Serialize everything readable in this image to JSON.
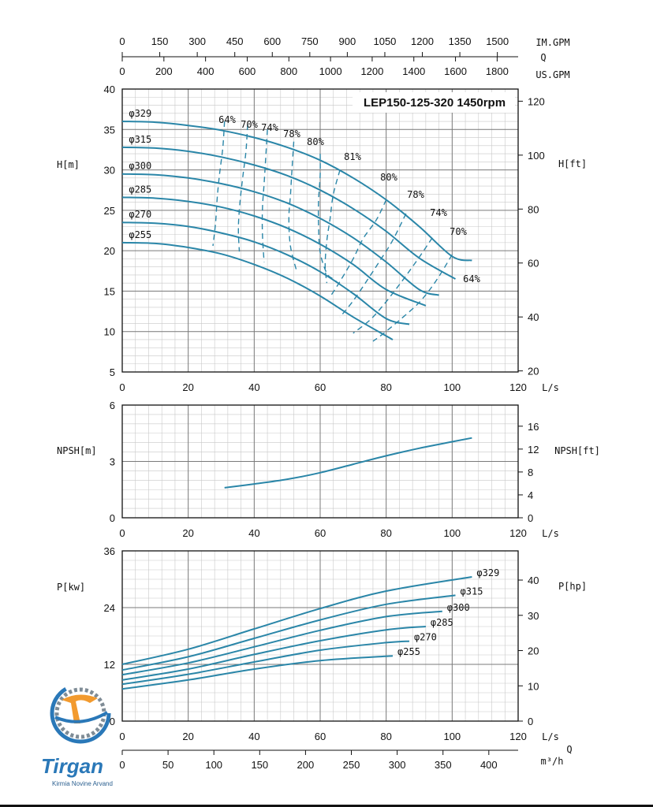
{
  "chart_data": [
    {
      "type": "line",
      "title": "LEP150-125-320 1450rpm",
      "xlabel": "L/s",
      "ylabel": "H[m]",
      "ylabel_right": "H[ft]",
      "xlim": [
        0,
        120
      ],
      "ylim": [
        5,
        40
      ],
      "xticks": [
        "0",
        "20",
        "40",
        "60",
        "80",
        "100",
        "120"
      ],
      "yticks": [
        "5",
        "10",
        "15",
        "20",
        "25",
        "30",
        "35",
        "40"
      ],
      "yticks_right": [
        "20",
        "40",
        "60",
        "80",
        "100",
        "120"
      ],
      "grid": true,
      "top_axes": [
        {
          "unit": "IM.GPM",
          "ticks": [
            "0",
            "150",
            "300",
            "450",
            "600",
            "750",
            "900",
            "1050",
            "1200",
            "1350",
            "1500"
          ]
        },
        {
          "unit": "Q",
          "ticks": []
        },
        {
          "unit": "US.GPM",
          "ticks": [
            "0",
            "200",
            "400",
            "600",
            "800",
            "1000",
            "1200",
            "1400",
            "1600",
            "1800"
          ]
        }
      ],
      "series": [
        {
          "name": "φ329",
          "x": [
            0,
            10,
            20,
            30,
            40,
            50,
            60,
            70,
            80,
            90,
            100,
            106
          ],
          "y": [
            36.0,
            35.9,
            35.5,
            34.9,
            34.0,
            32.8,
            31.2,
            29.0,
            26.3,
            23.0,
            19.3,
            18.8
          ]
        },
        {
          "name": "φ315",
          "x": [
            0,
            10,
            20,
            30,
            40,
            50,
            60,
            70,
            80,
            90,
            101
          ],
          "y": [
            32.8,
            32.7,
            32.3,
            31.6,
            30.6,
            29.3,
            27.5,
            25.2,
            22.4,
            19.1,
            16.5
          ]
        },
        {
          "name": "φ300",
          "x": [
            0,
            10,
            20,
            30,
            40,
            50,
            60,
            70,
            80,
            90,
            96
          ],
          "y": [
            29.5,
            29.4,
            29.0,
            28.3,
            27.3,
            25.9,
            24.0,
            21.6,
            18.6,
            15.2,
            14.5
          ]
        },
        {
          "name": "φ285",
          "x": [
            0,
            10,
            20,
            30,
            40,
            50,
            60,
            70,
            80,
            92
          ],
          "y": [
            26.6,
            26.5,
            26.1,
            25.4,
            24.3,
            22.8,
            20.8,
            18.3,
            15.2,
            13.2
          ]
        },
        {
          "name": "φ270",
          "x": [
            0,
            10,
            20,
            30,
            40,
            50,
            60,
            70,
            80,
            87
          ],
          "y": [
            23.5,
            23.4,
            23.0,
            22.2,
            21.1,
            19.5,
            17.4,
            14.7,
            11.6,
            10.9
          ]
        },
        {
          "name": "φ255",
          "x": [
            0,
            10,
            20,
            30,
            40,
            50,
            60,
            70,
            82
          ],
          "y": [
            21.0,
            20.9,
            20.4,
            19.6,
            18.3,
            16.6,
            14.4,
            11.8,
            9.0
          ]
        }
      ],
      "efficiency_labels": [
        "64%",
        "70%",
        "74%",
        "78%",
        "80%",
        "81%",
        "80%",
        "78%",
        "74%",
        "70%",
        "64%"
      ],
      "efficiency_left": [
        {
          "name": "64%",
          "x": [
            31,
            30.5,
            29.5,
            28.8,
            28.3,
            27.5
          ],
          "y": [
            36,
            32.8,
            29.5,
            26.6,
            23.5,
            20.6
          ]
        },
        {
          "name": "70%",
          "x": [
            38,
            37.5,
            36.5,
            35.7,
            35.2,
            35.5
          ],
          "y": [
            35.6,
            32.3,
            29.0,
            26.0,
            22.8,
            19.9
          ]
        },
        {
          "name": "74%",
          "x": [
            44,
            43.5,
            43,
            42.5,
            42.5,
            43
          ],
          "y": [
            35.0,
            31.6,
            28.3,
            25.2,
            22.0,
            18.6
          ]
        },
        {
          "name": "78%",
          "x": [
            52,
            51.5,
            51,
            50.5,
            51,
            53
          ],
          "y": [
            33.5,
            30.3,
            27.0,
            24.0,
            20.5,
            17.3
          ]
        }
      ],
      "efficiency_right": [
        {
          "name": "80%",
          "x": [
            60,
            60,
            59.5,
            59.5,
            60,
            62,
            64,
            66
          ],
          "y": [
            32.0,
            29.4,
            26.2,
            23.1,
            19.8,
            17.2,
            16.5,
            15.8
          ]
        },
        {
          "name": "81%",
          "x": [
            66,
            64,
            63,
            62,
            61.5,
            62
          ],
          "y": [
            30.0,
            27.0,
            24.0,
            21.2,
            18.2,
            16.0
          ]
        },
        {
          "name": "80%",
          "x": [
            80,
            77,
            73,
            70,
            66,
            63
          ],
          "y": [
            26.3,
            23.8,
            21.5,
            19.0,
            16.2,
            14.3
          ]
        },
        {
          "name": "78%",
          "x": [
            86,
            82,
            78,
            74,
            70,
            66
          ],
          "y": [
            24.6,
            21.3,
            18.7,
            16.2,
            13.8,
            11.8
          ]
        },
        {
          "name": "74%",
          "x": [
            94,
            89,
            84,
            79,
            75,
            70
          ],
          "y": [
            21.6,
            18.6,
            15.8,
            13.2,
            11.4,
            9.8
          ]
        },
        {
          "name": "70%",
          "x": [
            100,
            95,
            90,
            84,
            79,
            76
          ],
          "y": [
            19.5,
            16.2,
            13.6,
            11.4,
            9.7,
            8.8
          ]
        }
      ]
    },
    {
      "type": "line",
      "xlabel": "L/s",
      "ylabel": "NPSH[m]",
      "ylabel_right": "NPSH[ft]",
      "xlim": [
        0,
        120
      ],
      "ylim": [
        0,
        6
      ],
      "xticks": [
        "0",
        "20",
        "40",
        "60",
        "80",
        "100",
        "120"
      ],
      "yticks": [
        "0",
        "3",
        "6"
      ],
      "yticks_right": [
        "0",
        "4",
        "8",
        "12",
        "16"
      ],
      "grid": true,
      "series": [
        {
          "x": [
            31,
            40,
            50,
            60,
            70,
            80,
            90,
            100,
            106
          ],
          "y": [
            1.6,
            1.8,
            2.05,
            2.4,
            2.85,
            3.3,
            3.7,
            4.05,
            4.25
          ]
        }
      ]
    },
    {
      "type": "line",
      "xlabel": "L/s",
      "ylabel": "P[kw]",
      "ylabel_right": "P[hp]",
      "xlim": [
        0,
        120
      ],
      "ylim": [
        0,
        36
      ],
      "xticks": [
        "0",
        "20",
        "40",
        "60",
        "80",
        "100",
        "120"
      ],
      "yticks": [
        "0",
        "12",
        "24",
        "36"
      ],
      "yticks_right": [
        "0",
        "10",
        "20",
        "30",
        "40"
      ],
      "bottom_axis": {
        "unit_q": "Q",
        "unit": "m³/h",
        "ticks": [
          "0",
          "50",
          "100",
          "150",
          "200",
          "250",
          "300",
          "350",
          "400"
        ]
      },
      "grid": true,
      "series": [
        {
          "name": "φ329",
          "x": [
            0,
            20,
            40,
            60,
            80,
            106
          ],
          "y": [
            12.0,
            15.2,
            19.5,
            23.8,
            27.5,
            30.5
          ]
        },
        {
          "name": "φ315",
          "x": [
            0,
            20,
            40,
            60,
            80,
            101
          ],
          "y": [
            10.8,
            13.6,
            17.5,
            21.4,
            24.7,
            26.6
          ]
        },
        {
          "name": "φ300",
          "x": [
            0,
            20,
            40,
            60,
            80,
            97
          ],
          "y": [
            9.8,
            12.3,
            15.7,
            19.2,
            22.1,
            23.2
          ]
        },
        {
          "name": "φ285",
          "x": [
            0,
            20,
            40,
            60,
            80,
            92
          ],
          "y": [
            8.7,
            11.0,
            14.1,
            17.0,
            19.3,
            20.0
          ]
        },
        {
          "name": "φ270",
          "x": [
            0,
            20,
            40,
            60,
            80,
            87
          ],
          "y": [
            7.8,
            9.9,
            12.5,
            15.0,
            16.6,
            16.9
          ]
        },
        {
          "name": "φ255",
          "x": [
            0,
            20,
            40,
            60,
            82
          ],
          "y": [
            6.8,
            8.7,
            11.0,
            12.8,
            13.8
          ]
        }
      ]
    }
  ],
  "logo": {
    "word": "Tirgan",
    "subtitle": "Kirmia Novine Arvand",
    "colors": {
      "blue": "#2a78b8",
      "orange": "#f29a2e",
      "gear": "#7f8c96"
    }
  },
  "colors": {
    "curve": "#2a86a8",
    "grid": "#9a9a9a",
    "axis": "#111111"
  }
}
